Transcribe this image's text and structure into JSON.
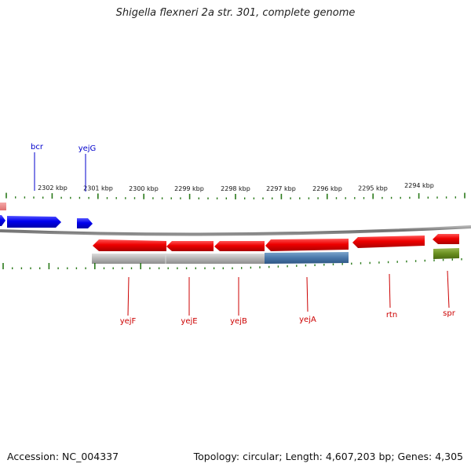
{
  "title": "Shigella flexneri 2a str. 301, complete genome",
  "footer": {
    "accession": "Accession: NC_004337",
    "summary": "Topology: circular; Length: 4,607,203 bp; Genes: 4,305"
  },
  "colors": {
    "forward_gene": "#0000ee",
    "reverse_gene": "#ee0000",
    "partial_gene": "#ee8888",
    "backbone": "#808080",
    "tick": "#2a7a1a",
    "feature_gray": "#aaaaaa",
    "feature_blue": "#4a78aa",
    "feature_green": "#6a8f20"
  },
  "ruler": {
    "labels": [
      "2302 kbp",
      "2301 kbp",
      "2300 kbp",
      "2299 kbp",
      "2298 kbp",
      "2297 kbp",
      "2296 kbp",
      "2295 kbp",
      "2294 kbp"
    ]
  },
  "genes": {
    "forward": [
      {
        "name": "bcr"
      },
      {
        "name": "yejG"
      }
    ],
    "reverse": [
      {
        "name": "yejF"
      },
      {
        "name": "yejE"
      },
      {
        "name": "yejB"
      },
      {
        "name": "yejA"
      },
      {
        "name": "rtn"
      },
      {
        "name": "spr"
      }
    ]
  }
}
